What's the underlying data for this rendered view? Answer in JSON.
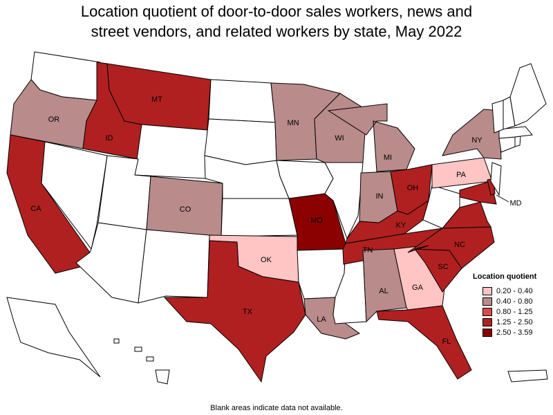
{
  "title": {
    "line1": "Location quotient of door-to-door sales workers, news and",
    "line2": "street vendors, and related workers by state, May 2022"
  },
  "legend": {
    "title": "Location quotient",
    "items": [
      {
        "label": "0.20 - 0.40",
        "color": "#ffc4c4"
      },
      {
        "label": "0.40 - 0.80",
        "color": "#b98b8b"
      },
      {
        "label": "0.80 - 1.25",
        "color": "#d94a4a"
      },
      {
        "label": "1.25 - 2.50",
        "color": "#b02020"
      },
      {
        "label": "2.50 - 3.59",
        "color": "#8b0000"
      }
    ]
  },
  "footnote": "Blank areas indicate data not available.",
  "states": [
    {
      "code": "WA",
      "label": "",
      "class": null
    },
    {
      "code": "OR",
      "label": "OR",
      "class": 1
    },
    {
      "code": "CA",
      "label": "CA",
      "class": 3
    },
    {
      "code": "NV",
      "label": "",
      "class": null
    },
    {
      "code": "ID",
      "label": "ID",
      "class": 3
    },
    {
      "code": "MT",
      "label": "MT",
      "class": 3
    },
    {
      "code": "WY",
      "label": "",
      "class": null
    },
    {
      "code": "UT",
      "label": "",
      "class": null
    },
    {
      "code": "AZ",
      "label": "",
      "class": null
    },
    {
      "code": "CO",
      "label": "CO",
      "class": 1
    },
    {
      "code": "NM",
      "label": "",
      "class": null
    },
    {
      "code": "ND",
      "label": "",
      "class": null
    },
    {
      "code": "SD",
      "label": "",
      "class": null
    },
    {
      "code": "NE",
      "label": "",
      "class": null
    },
    {
      "code": "KS",
      "label": "",
      "class": null
    },
    {
      "code": "OK",
      "label": "OK",
      "class": 0
    },
    {
      "code": "TX",
      "label": "TX",
      "class": 3
    },
    {
      "code": "MN",
      "label": "MN",
      "class": 1
    },
    {
      "code": "IA",
      "label": "",
      "class": null
    },
    {
      "code": "MO",
      "label": "MO",
      "class": 4
    },
    {
      "code": "AR",
      "label": "",
      "class": null
    },
    {
      "code": "LA",
      "label": "LA",
      "class": 1
    },
    {
      "code": "WI",
      "label": "WI",
      "class": 1
    },
    {
      "code": "IL",
      "label": "",
      "class": null
    },
    {
      "code": "MS",
      "label": "",
      "class": null
    },
    {
      "code": "MI",
      "label": "MI",
      "class": 1
    },
    {
      "code": "IN",
      "label": "IN",
      "class": 1
    },
    {
      "code": "OH",
      "label": "OH",
      "class": 3
    },
    {
      "code": "KY",
      "label": "KY",
      "class": 3
    },
    {
      "code": "TN",
      "label": "TN",
      "class": 3
    },
    {
      "code": "AL",
      "label": "AL",
      "class": 1
    },
    {
      "code": "GA",
      "label": "GA",
      "class": 0
    },
    {
      "code": "FL",
      "label": "FL",
      "class": 3
    },
    {
      "code": "SC",
      "label": "SC",
      "class": 3
    },
    {
      "code": "NC",
      "label": "NC",
      "class": 3
    },
    {
      "code": "VA",
      "label": "",
      "class": 3
    },
    {
      "code": "WV",
      "label": "",
      "class": null
    },
    {
      "code": "PA",
      "label": "PA",
      "class": 0
    },
    {
      "code": "NY",
      "label": "NY",
      "class": 1
    },
    {
      "code": "MD",
      "label": "MD",
      "class": 3
    },
    {
      "code": "DE",
      "label": "",
      "class": 3
    },
    {
      "code": "NJ",
      "label": "",
      "class": null
    },
    {
      "code": "CT",
      "label": "",
      "class": null
    },
    {
      "code": "RI",
      "label": "",
      "class": null
    },
    {
      "code": "MA",
      "label": "",
      "class": null
    },
    {
      "code": "VT",
      "label": "",
      "class": null
    },
    {
      "code": "NH",
      "label": "",
      "class": null
    },
    {
      "code": "ME",
      "label": "",
      "class": null
    },
    {
      "code": "AK",
      "label": "",
      "class": null
    },
    {
      "code": "HI",
      "label": "",
      "class": null
    },
    {
      "code": "PR",
      "label": "",
      "class": null
    }
  ]
}
